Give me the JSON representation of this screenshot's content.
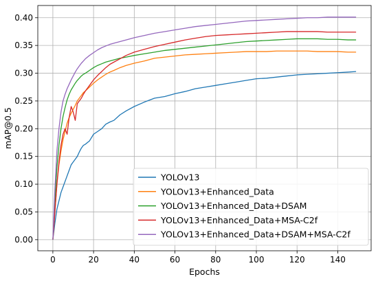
{
  "chart_data": {
    "type": "line",
    "title": "",
    "xlabel": "Epochs",
    "ylabel": "mAP@0.5",
    "xlim": [
      -7.4,
      156.4
    ],
    "ylim": [
      -0.02,
      0.422
    ],
    "xticks": [
      0,
      20,
      40,
      60,
      80,
      100,
      120,
      140
    ],
    "yticks": [
      0.0,
      0.05,
      0.1,
      0.15,
      0.2,
      0.25,
      0.3,
      0.35,
      0.4
    ],
    "grid": true,
    "legend_position": "lower-right",
    "x": [
      0,
      1,
      2,
      3,
      4,
      5,
      6,
      7,
      8,
      9,
      10,
      11,
      12,
      13,
      14,
      15,
      16,
      18,
      20,
      22,
      24,
      26,
      28,
      30,
      33,
      36,
      40,
      45,
      50,
      55,
      60,
      65,
      70,
      75,
      80,
      85,
      90,
      95,
      100,
      105,
      110,
      115,
      120,
      125,
      130,
      135,
      140,
      145,
      149
    ],
    "series": [
      {
        "name": "YOLOv13",
        "color": "#1f77b4",
        "values": [
          0.0,
          0.03,
          0.055,
          0.07,
          0.085,
          0.095,
          0.105,
          0.115,
          0.125,
          0.135,
          0.14,
          0.145,
          0.15,
          0.158,
          0.165,
          0.17,
          0.172,
          0.178,
          0.19,
          0.195,
          0.2,
          0.208,
          0.212,
          0.215,
          0.225,
          0.232,
          0.24,
          0.248,
          0.255,
          0.258,
          0.263,
          0.267,
          0.272,
          0.275,
          0.278,
          0.281,
          0.284,
          0.287,
          0.29,
          0.291,
          0.293,
          0.295,
          0.297,
          0.298,
          0.299,
          0.3,
          0.301,
          0.302,
          0.303
        ]
      },
      {
        "name": "YOLOv13+Enhanced_Data",
        "color": "#ff7f0e",
        "values": [
          0.0,
          0.05,
          0.1,
          0.135,
          0.16,
          0.18,
          0.195,
          0.21,
          0.22,
          0.228,
          0.235,
          0.242,
          0.25,
          0.255,
          0.26,
          0.265,
          0.268,
          0.275,
          0.282,
          0.288,
          0.293,
          0.298,
          0.302,
          0.305,
          0.31,
          0.314,
          0.318,
          0.322,
          0.327,
          0.329,
          0.331,
          0.333,
          0.334,
          0.335,
          0.336,
          0.337,
          0.338,
          0.339,
          0.339,
          0.339,
          0.34,
          0.34,
          0.34,
          0.34,
          0.339,
          0.339,
          0.339,
          0.338,
          0.338
        ]
      },
      {
        "name": "YOLOv13+Enhanced_Data+DSAM",
        "color": "#2ca02c",
        "values": [
          0.0,
          0.07,
          0.13,
          0.17,
          0.2,
          0.222,
          0.238,
          0.252,
          0.262,
          0.27,
          0.276,
          0.282,
          0.287,
          0.291,
          0.295,
          0.298,
          0.3,
          0.305,
          0.31,
          0.314,
          0.317,
          0.32,
          0.322,
          0.324,
          0.327,
          0.329,
          0.332,
          0.335,
          0.338,
          0.341,
          0.343,
          0.345,
          0.347,
          0.349,
          0.351,
          0.353,
          0.355,
          0.357,
          0.358,
          0.359,
          0.36,
          0.361,
          0.362,
          0.362,
          0.362,
          0.361,
          0.361,
          0.36,
          0.36
        ]
      },
      {
        "name": "YOLOv13+Enhanced_Data+MSA-C2f",
        "color": "#d62728",
        "values": [
          0.0,
          0.05,
          0.1,
          0.14,
          0.17,
          0.19,
          0.2,
          0.19,
          0.22,
          0.24,
          0.23,
          0.215,
          0.245,
          0.25,
          0.255,
          0.262,
          0.268,
          0.278,
          0.288,
          0.296,
          0.303,
          0.31,
          0.316,
          0.32,
          0.326,
          0.332,
          0.338,
          0.343,
          0.348,
          0.352,
          0.356,
          0.36,
          0.363,
          0.366,
          0.368,
          0.369,
          0.37,
          0.371,
          0.372,
          0.373,
          0.374,
          0.375,
          0.375,
          0.375,
          0.375,
          0.374,
          0.374,
          0.374,
          0.374
        ]
      },
      {
        "name": "YOLOv13+Enhanced_Data+DSAM+MSA-C2f",
        "color": "#9467bd",
        "values": [
          0.0,
          0.09,
          0.16,
          0.2,
          0.23,
          0.25,
          0.262,
          0.272,
          0.28,
          0.288,
          0.295,
          0.302,
          0.308,
          0.313,
          0.318,
          0.322,
          0.326,
          0.332,
          0.337,
          0.342,
          0.346,
          0.349,
          0.352,
          0.354,
          0.357,
          0.36,
          0.364,
          0.368,
          0.372,
          0.375,
          0.378,
          0.381,
          0.384,
          0.386,
          0.388,
          0.39,
          0.392,
          0.394,
          0.395,
          0.396,
          0.397,
          0.398,
          0.399,
          0.4,
          0.4,
          0.401,
          0.401,
          0.401,
          0.401
        ]
      }
    ]
  }
}
